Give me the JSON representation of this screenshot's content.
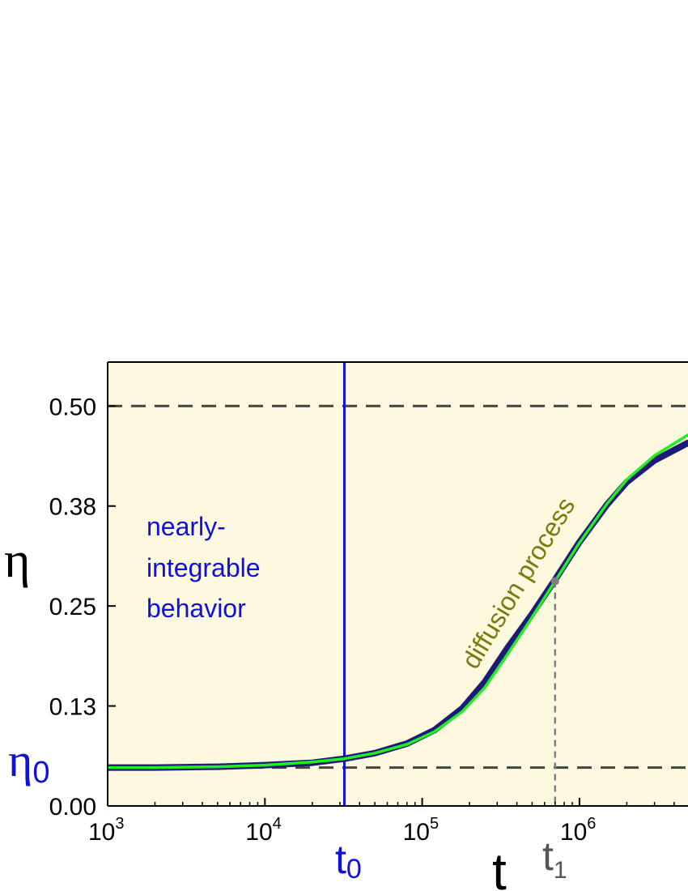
{
  "chart_data": {
    "type": "line",
    "title": "",
    "xlabel": "t",
    "ylabel": "η",
    "x_scale": "log",
    "xlim": [
      1000,
      4900000
    ],
    "ylim": [
      0.0,
      0.555
    ],
    "x_ticks": [
      {
        "value": 1000,
        "base": "10",
        "exp": "3"
      },
      {
        "value": 10000,
        "base": "10",
        "exp": "4"
      },
      {
        "value": 100000,
        "base": "10",
        "exp": "5"
      },
      {
        "value": 1000000,
        "base": "10",
        "exp": "6"
      }
    ],
    "y_ticks": [
      {
        "value": 0.0,
        "label": "0.00"
      },
      {
        "value": 0.125,
        "label": "0.13"
      },
      {
        "value": 0.25,
        "label": "0.25"
      },
      {
        "value": 0.375,
        "label": "0.38"
      },
      {
        "value": 0.5,
        "label": "0.50"
      }
    ],
    "background": "#fdf9df",
    "grid": false,
    "series": [
      {
        "kind": "data",
        "color": "#1c1c78",
        "x": [
          1000,
          2000,
          5000,
          10000,
          20000,
          32000,
          50000,
          80000,
          120000,
          180000,
          250000,
          350000,
          500000,
          700000,
          1000000,
          1500000,
          2000000,
          3000000,
          4900000
        ],
        "y": [
          0.048,
          0.048,
          0.049,
          0.051,
          0.054,
          0.059,
          0.066,
          0.078,
          0.095,
          0.122,
          0.155,
          0.198,
          0.24,
          0.283,
          0.33,
          0.377,
          0.405,
          0.432,
          0.454
        ]
      },
      {
        "kind": "fit",
        "color": "#22ee22",
        "x": [
          1000,
          2000,
          5000,
          10000,
          20000,
          32000,
          50000,
          80000,
          120000,
          180000,
          250000,
          350000,
          500000,
          700000,
          1000000,
          1500000,
          2000000,
          3000000,
          4900000
        ],
        "y": [
          0.048,
          0.048,
          0.049,
          0.051,
          0.055,
          0.059,
          0.066,
          0.077,
          0.093,
          0.118,
          0.148,
          0.19,
          0.236,
          0.281,
          0.329,
          0.378,
          0.408,
          0.438,
          0.464
        ]
      }
    ],
    "reference_lines": [
      {
        "axis": "y",
        "value": 0.5,
        "style": "dashed",
        "color": "#444444"
      },
      {
        "axis": "y",
        "value": 0.048,
        "style": "dashed",
        "color": "#444444"
      },
      {
        "axis": "x",
        "value": 32000,
        "style": "solid",
        "color": "#1010dd"
      }
    ],
    "marker": {
      "x": 700000,
      "y": 0.281,
      "color": "#808080"
    },
    "annotations": {
      "regime_lines": [
        "nearly-",
        "integrable",
        "behavior"
      ],
      "regime_color": "#1010dd",
      "diffusion": "diffusion process",
      "diffusion_color": "#7a7a10",
      "eta0_base": "η",
      "eta0_sub": "0",
      "eta0_color": "#1010dd",
      "t0_base": "t",
      "t0_sub": "0",
      "t0_color": "#1010dd",
      "t1_base": "t",
      "t1_sub": "1",
      "t1_color": "#555555"
    }
  }
}
